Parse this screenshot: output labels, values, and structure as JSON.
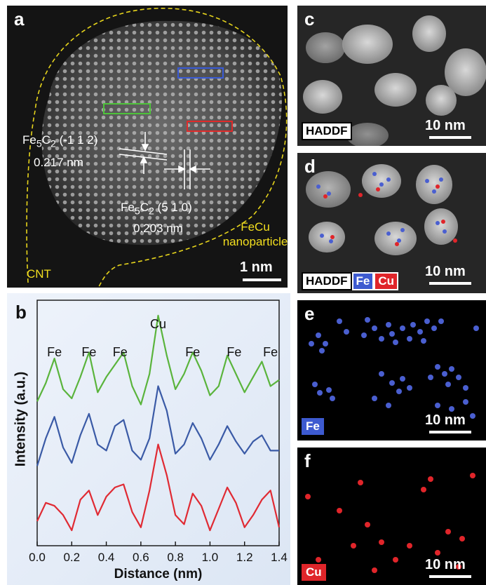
{
  "panel_a": {
    "letter": "a",
    "label_fe5c2_112": "Fe5C2 (-1 1 2)",
    "value_112": "0.217 nm",
    "label_fe5c2_510": "Fe5C2 (5 1 0)",
    "value_510": "0.203 nm",
    "feCu_line1": "FeCu",
    "feCu_line2": "nanoparticle",
    "cnt": "CNT",
    "scale": "1 nm",
    "colors": {
      "blue_box": "#3a5bd6",
      "green_box": "#4ec33a",
      "red_box": "#e02a2a",
      "outline": "#e6d41c"
    }
  },
  "panel_b": {
    "letter": "b",
    "ylabel": "Intensity (a.u.)",
    "xlabel": "Distance (nm)",
    "peak_labels": [
      "Fe",
      "Fe",
      "Fe",
      "Cu",
      "Fe",
      "Fe",
      "Fe"
    ],
    "peak_label_x": [
      0.1,
      0.3,
      0.48,
      0.7,
      0.9,
      1.14,
      1.35
    ]
  },
  "chart_data": {
    "type": "line",
    "xlabel": "Distance (nm)",
    "ylabel": "Intensity (a.u.)",
    "xlim": [
      0.0,
      1.4
    ],
    "xticks": [
      "0.0",
      "0.2",
      "0.4",
      "0.6",
      "0.8",
      "1.0",
      "1.2",
      "1.4"
    ],
    "x": [
      0.0,
      0.05,
      0.1,
      0.15,
      0.2,
      0.25,
      0.3,
      0.35,
      0.4,
      0.45,
      0.5,
      0.55,
      0.6,
      0.65,
      0.7,
      0.75,
      0.8,
      0.85,
      0.9,
      0.95,
      1.0,
      1.05,
      1.1,
      1.15,
      1.2,
      1.25,
      1.3,
      1.35,
      1.4
    ],
    "series": [
      {
        "color": "#5ab43c",
        "offset": 2.0,
        "values": [
          0.15,
          0.45,
          0.85,
          0.35,
          0.2,
          0.55,
          0.95,
          0.3,
          0.55,
          0.75,
          0.95,
          0.4,
          0.1,
          0.6,
          1.55,
          0.9,
          0.35,
          0.6,
          0.95,
          0.65,
          0.25,
          0.4,
          0.9,
          0.6,
          0.3,
          0.55,
          0.8,
          0.4,
          0.5
        ]
      },
      {
        "color": "#3a5aa6",
        "offset": 1.0,
        "values": [
          0.1,
          0.55,
          0.9,
          0.4,
          0.15,
          0.6,
          0.95,
          0.45,
          0.35,
          0.75,
          0.85,
          0.35,
          0.2,
          0.55,
          1.4,
          1.0,
          0.3,
          0.45,
          0.8,
          0.55,
          0.2,
          0.45,
          0.75,
          0.5,
          0.3,
          0.5,
          0.6,
          0.35,
          0.35
        ]
      },
      {
        "color": "#e02a33",
        "offset": 0.0,
        "values": [
          0.2,
          0.5,
          0.45,
          0.3,
          0.05,
          0.55,
          0.7,
          0.3,
          0.6,
          0.75,
          0.8,
          0.35,
          0.1,
          0.7,
          1.45,
          0.95,
          0.3,
          0.15,
          0.65,
          0.45,
          0.05,
          0.4,
          0.75,
          0.5,
          0.1,
          0.3,
          0.55,
          0.7,
          0.1
        ]
      }
    ]
  },
  "panel_c": {
    "letter": "c",
    "box": "HADDF",
    "scale": "10 nm"
  },
  "panel_d": {
    "letter": "d",
    "box": "HADDF",
    "fe": "Fe",
    "cu": "Cu",
    "scale": "10 nm"
  },
  "panel_e": {
    "letter": "e",
    "box": "Fe",
    "scale": "10 nm",
    "color": "#4a5fd0"
  },
  "panel_f": {
    "letter": "f",
    "box": "Cu",
    "scale": "10 nm",
    "color": "#e0252a"
  }
}
